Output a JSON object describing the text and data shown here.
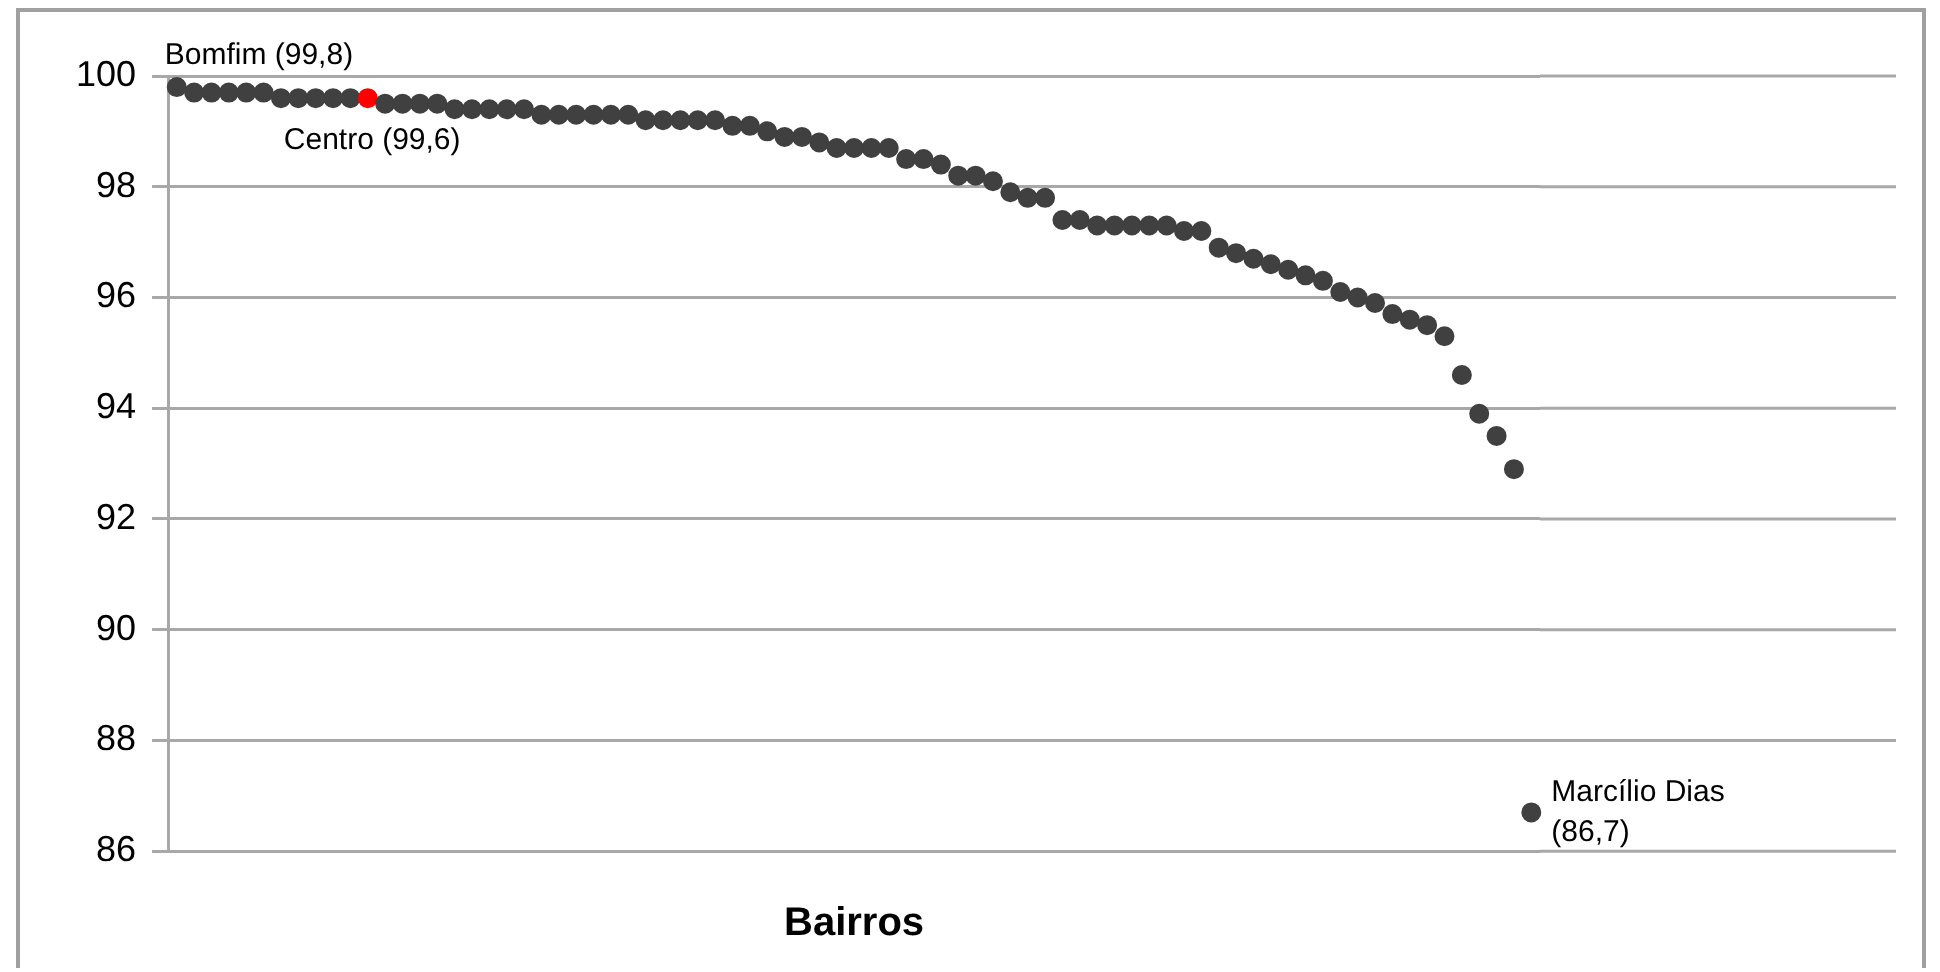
{
  "chart_data": {
    "type": "scatter",
    "xlabel": "Bairros",
    "categories": [
      null,
      null,
      null,
      null,
      null,
      null,
      null,
      null,
      null,
      null,
      null,
      null,
      null,
      null,
      null,
      null,
      null,
      null,
      null,
      null,
      null,
      null,
      null,
      null,
      null,
      null,
      null,
      null,
      null,
      null,
      null,
      null,
      null,
      null,
      null,
      null,
      null,
      null,
      null,
      null,
      null,
      null,
      null,
      null,
      null,
      null,
      null,
      null,
      null,
      null,
      null,
      null,
      null,
      null,
      null,
      null,
      null,
      null,
      null,
      null,
      null,
      null,
      null,
      null,
      null,
      null,
      null,
      null,
      null,
      null,
      null,
      null,
      null,
      null,
      null,
      null,
      null,
      null,
      null
    ],
    "values": [
      99.8,
      99.7,
      99.7,
      99.7,
      99.7,
      99.7,
      99.6,
      99.6,
      99.6,
      99.6,
      99.6,
      99.6,
      99.5,
      99.5,
      99.5,
      99.5,
      99.4,
      99.4,
      99.4,
      99.4,
      99.4,
      99.3,
      99.3,
      99.3,
      99.3,
      99.3,
      99.3,
      99.2,
      99.2,
      99.2,
      99.2,
      99.2,
      99.1,
      99.1,
      99.0,
      98.9,
      98.9,
      98.8,
      98.7,
      98.7,
      98.7,
      98.7,
      98.5,
      98.5,
      98.4,
      98.2,
      98.2,
      98.1,
      97.9,
      97.8,
      97.8,
      97.4,
      97.4,
      97.3,
      97.3,
      97.3,
      97.3,
      97.3,
      97.2,
      97.2,
      96.9,
      96.8,
      96.7,
      96.6,
      96.5,
      96.4,
      96.3,
      96.1,
      96.0,
      95.9,
      95.7,
      95.6,
      95.5,
      95.3,
      94.6,
      93.9,
      93.5,
      92.9,
      86.7
    ],
    "value_labels": [
      "Bomfim (99,8)",
      null,
      null,
      null,
      null,
      null,
      null,
      null,
      null,
      null,
      null,
      "Centro (99,6)",
      null,
      null,
      null,
      null,
      null,
      null,
      null,
      null,
      null,
      null,
      null,
      null,
      null,
      null,
      null,
      null,
      null,
      null,
      null,
      null,
      null,
      null,
      null,
      null,
      null,
      null,
      null,
      null,
      null,
      null,
      null,
      null,
      null,
      null,
      null,
      null,
      null,
      null,
      null,
      null,
      null,
      null,
      null,
      null,
      null,
      null,
      null,
      null,
      null,
      null,
      null,
      null,
      null,
      null,
      null,
      null,
      null,
      null,
      null,
      null,
      null,
      null,
      null,
      null,
      null,
      null,
      "Marcílio Dias (86,7)"
    ],
    "colors": [
      "#404040",
      "#404040",
      "#404040",
      "#404040",
      "#404040",
      "#404040",
      "#404040",
      "#404040",
      "#404040",
      "#404040",
      "#404040",
      "#ff0000",
      "#404040",
      "#404040",
      "#404040",
      "#404040",
      "#404040",
      "#404040",
      "#404040",
      "#404040",
      "#404040",
      "#404040",
      "#404040",
      "#404040",
      "#404040",
      "#404040",
      "#404040",
      "#404040",
      "#404040",
      "#404040",
      "#404040",
      "#404040",
      "#404040",
      "#404040",
      "#404040",
      "#404040",
      "#404040",
      "#404040",
      "#404040",
      "#404040",
      "#404040",
      "#404040",
      "#404040",
      "#404040",
      "#404040",
      "#404040",
      "#404040",
      "#404040",
      "#404040",
      "#404040",
      "#404040",
      "#404040",
      "#404040",
      "#404040",
      "#404040",
      "#404040",
      "#404040",
      "#404040",
      "#404040",
      "#404040",
      "#404040",
      "#404040",
      "#404040",
      "#404040",
      "#404040",
      "#404040",
      "#404040",
      "#404040",
      "#404040",
      "#404040",
      "#404040",
      "#404040",
      "#404040",
      "#404040",
      "#404040",
      "#404040",
      "#404040",
      "#404040",
      "#404040"
    ],
    "ylim": [
      86,
      100
    ],
    "yticks": [
      86,
      88,
      90,
      92,
      94,
      96,
      98,
      100
    ],
    "grid": "y",
    "legend": false,
    "marker": "circle"
  }
}
